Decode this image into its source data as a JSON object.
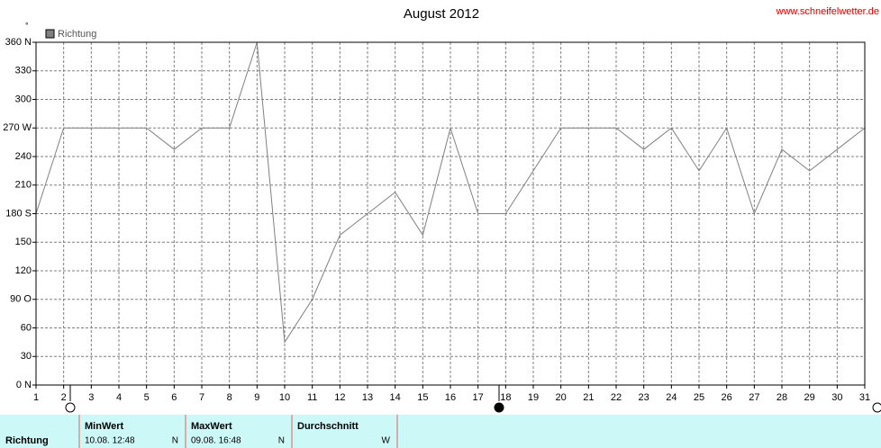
{
  "chart_data": {
    "type": "line",
    "title": "August 2012",
    "watermark": "www.schneifelwetter.de",
    "y_unit": "°",
    "categories": [
      "1",
      "2",
      "3",
      "4",
      "5",
      "6",
      "7",
      "8",
      "9",
      "10",
      "11",
      "12",
      "13",
      "14",
      "15",
      "16",
      "17",
      "18",
      "19",
      "20",
      "21",
      "22",
      "23",
      "24",
      "25",
      "26",
      "27",
      "28",
      "29",
      "30",
      "31"
    ],
    "series": [
      {
        "name": "Richtung",
        "color": "#808080",
        "values": [
          180,
          270,
          270,
          270,
          270,
          247.5,
          270,
          270,
          360,
          45,
          90,
          157.5,
          180,
          202.5,
          157.5,
          270,
          180,
          180,
          225,
          270,
          270,
          270,
          247.5,
          270,
          225,
          270,
          180,
          247.5,
          225,
          247.5,
          270
        ]
      }
    ],
    "ylim": [
      0,
      360
    ],
    "yticks": [
      {
        "value": 0,
        "label": "0 N"
      },
      30,
      60,
      {
        "value": 90,
        "label": "90 O"
      },
      120,
      150,
      {
        "value": 180,
        "label": "180 S"
      },
      210,
      240,
      {
        "value": 270,
        "label": "270 W"
      },
      300,
      330,
      {
        "value": 360,
        "label": "360 N"
      }
    ],
    "grid": true
  },
  "table": {
    "row_label": "Richtung",
    "columns": [
      {
        "header": "MinWert",
        "time": "10.08.  12:48",
        "value": "N"
      },
      {
        "header": "MaxWert",
        "time": "09.08.  16:48",
        "value": "N"
      },
      {
        "header": "Durchschnitt",
        "value": "W"
      }
    ]
  }
}
